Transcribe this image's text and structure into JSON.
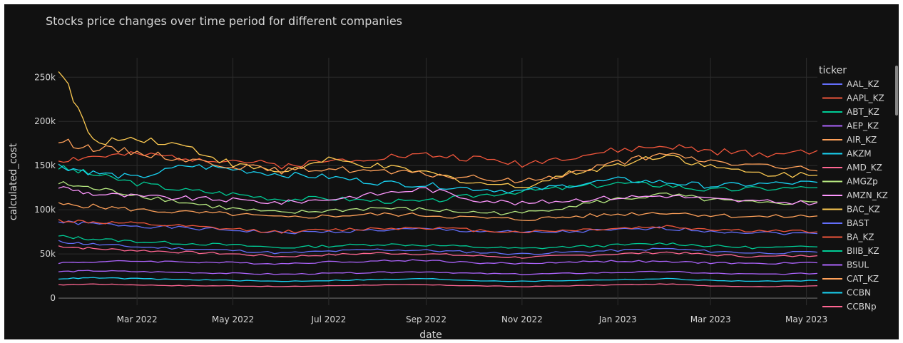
{
  "chart_data": {
    "type": "line",
    "title": "Stocks price changes over time period for different companies",
    "xlabel": "date",
    "ylabel": "calculated_cost",
    "legend_title": "ticker",
    "legend_position": "right",
    "xlim": [
      "2022-01-10",
      "2023-05-08"
    ],
    "ylim": [
      -8000,
      272000
    ],
    "x_ticks": [
      "Mar 2022",
      "May 2022",
      "Jul 2022",
      "Sep 2022",
      "Nov 2022",
      "Jan 2023",
      "Mar 2023",
      "May 2023"
    ],
    "x_tick_dates": [
      "2022-03-01",
      "2022-05-01",
      "2022-07-01",
      "2022-09-01",
      "2022-11-01",
      "2023-01-01",
      "2023-03-01",
      "2023-05-01"
    ],
    "y_ticks": [
      "0",
      "50k",
      "100k",
      "150k",
      "200k",
      "250k"
    ],
    "y_tick_values": [
      0,
      50000,
      100000,
      150000,
      200000,
      250000
    ],
    "grid": true,
    "background": "#111111",
    "dates": [
      "2022-01-10",
      "2022-02-01",
      "2022-03-01",
      "2022-04-01",
      "2022-05-01",
      "2022-06-01",
      "2022-07-01",
      "2022-08-01",
      "2022-09-01",
      "2022-10-01",
      "2022-11-01",
      "2022-12-01",
      "2023-01-01",
      "2023-02-01",
      "2023-03-01",
      "2023-04-01",
      "2023-05-08"
    ],
    "series": [
      {
        "name": "AAL_KZ",
        "color": "#636efa",
        "values": [
          86000,
          84000,
          82000,
          79000,
          77000,
          74000,
          75000,
          77000,
          78000,
          76000,
          74000,
          75000,
          77000,
          79000,
          76000,
          74000,
          73000
        ]
      },
      {
        "name": "AAPL_KZ",
        "color": "#ef553b",
        "values": [
          156000,
          160000,
          162000,
          159000,
          156000,
          150000,
          155000,
          160000,
          162000,
          158000,
          152000,
          160000,
          167000,
          172000,
          166000,
          163000,
          167000
        ]
      },
      {
        "name": "ABT_KZ",
        "color": "#00cc96",
        "values": [
          148000,
          140000,
          130000,
          122000,
          118000,
          112000,
          113000,
          110000,
          109000,
          116000,
          121000,
          125000,
          130000,
          128000,
          122000,
          124000,
          125000
        ]
      },
      {
        "name": "AEP_KZ",
        "color": "#ab63fa",
        "values": [
          40000,
          41000,
          42000,
          41000,
          40000,
          39000,
          41000,
          42000,
          43000,
          40000,
          39000,
          41000,
          42000,
          41000,
          40000,
          39000,
          40000
        ]
      },
      {
        "name": "AIR_KZ",
        "color": "#ffa15a",
        "values": [
          106000,
          104000,
          100000,
          97000,
          95000,
          91000,
          93000,
          95000,
          94000,
          91000,
          89000,
          92000,
          95000,
          97000,
          94000,
          92000,
          93000
        ]
      },
      {
        "name": "AKZM",
        "color": "#19d3f3",
        "values": [
          150000,
          142000,
          136000,
          150000,
          146000,
          140000,
          137000,
          131000,
          128000,
          124000,
          121000,
          128000,
          134000,
          131000,
          127000,
          129000,
          131000
        ]
      },
      {
        "name": "AMD_KZ",
        "color": "#ff6692",
        "values": [
          59000,
          56000,
          54000,
          52000,
          50000,
          47000,
          49000,
          51000,
          50000,
          48000,
          46000,
          48000,
          50000,
          52000,
          49000,
          47000,
          48000
        ]
      },
      {
        "name": "AMGZp",
        "color": "#b6e880",
        "values": [
          130000,
          124000,
          117000,
          108000,
          101000,
          96000,
          99000,
          102000,
          100000,
          97000,
          96000,
          104000,
          112000,
          117000,
          111000,
          107000,
          109000
        ]
      },
      {
        "name": "AMZN_KZ",
        "color": "#ff97ff",
        "values": [
          126000,
          118000,
          115000,
          113000,
          111000,
          108000,
          112000,
          118000,
          124000,
          112000,
          107000,
          111000,
          114000,
          116000,
          112000,
          109000,
          108000
        ]
      },
      {
        "name": "BAC_KZ",
        "color": "#fecb52",
        "values": [
          262000,
          176000,
          182000,
          172000,
          151000,
          143000,
          156000,
          149000,
          142000,
          131000,
          126000,
          141000,
          151000,
          163000,
          148000,
          141000,
          139000
        ]
      },
      {
        "name": "BAST",
        "color": "#636efa",
        "values": [
          64000,
          61000,
          58000,
          56000,
          54000,
          51000,
          53000,
          55000,
          54000,
          52000,
          50000,
          52000,
          54000,
          56000,
          53000,
          51000,
          52000
        ]
      },
      {
        "name": "BA_KZ",
        "color": "#ef553b",
        "values": [
          88000,
          86000,
          84000,
          81000,
          78000,
          75000,
          77000,
          79000,
          80000,
          77000,
          75000,
          77000,
          79000,
          81000,
          78000,
          76000,
          75000
        ]
      },
      {
        "name": "BIIB_KZ",
        "color": "#00cc96",
        "values": [
          70000,
          67000,
          64000,
          62000,
          60000,
          57000,
          59000,
          61000,
          60000,
          58000,
          56000,
          58000,
          60000,
          62000,
          59000,
          57000,
          58000
        ]
      },
      {
        "name": "BSUL",
        "color": "#ab63fa",
        "values": [
          30000,
          31000,
          30000,
          29000,
          28000,
          27000,
          28000,
          29000,
          30000,
          28000,
          27000,
          28000,
          29000,
          30000,
          28000,
          27000,
          28000
        ]
      },
      {
        "name": "CAT_KZ",
        "color": "#ffa15a",
        "values": [
          178000,
          170000,
          165000,
          157000,
          150000,
          144000,
          147000,
          143000,
          140000,
          136000,
          132000,
          141000,
          154000,
          162000,
          155000,
          150000,
          144000
        ]
      },
      {
        "name": "CCBN",
        "color": "#19d3f3",
        "values": [
          22000,
          23000,
          22000,
          21000,
          20000,
          19000,
          20000,
          21000,
          22000,
          20000,
          19000,
          20000,
          21000,
          22000,
          20000,
          19000,
          20000
        ]
      },
      {
        "name": "CCBNp",
        "color": "#ff6692",
        "values": [
          15000,
          16000,
          15000,
          14000,
          14000,
          13000,
          14000,
          15000,
          15000,
          14000,
          13000,
          14000,
          15000,
          16000,
          14000,
          13000,
          14000
        ]
      }
    ]
  }
}
